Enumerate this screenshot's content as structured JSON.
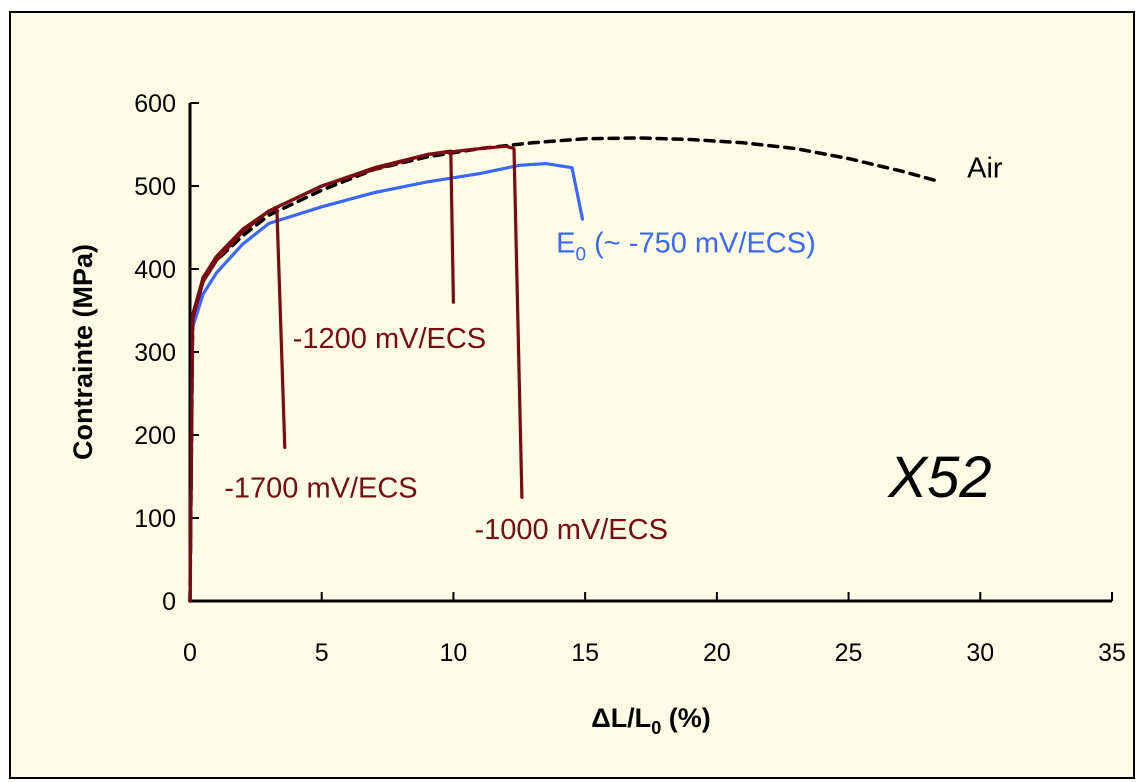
{
  "chart_data": {
    "type": "line",
    "title": "",
    "xlabel": "ΔL/L0 (%)",
    "xlabel_parts": {
      "main": "ΔL/L",
      "sub": "0",
      "rest": " (%)"
    },
    "ylabel": "Contrainte (MPa)",
    "xlim": [
      0,
      35
    ],
    "ylim": [
      0,
      600
    ],
    "x_ticks": [
      0,
      5,
      10,
      15,
      20,
      25,
      30,
      35
    ],
    "y_ticks": [
      0,
      100,
      200,
      300,
      400,
      500,
      600
    ],
    "x_tick_labels": [
      "0",
      "5",
      "10",
      "15",
      "20",
      "25",
      "30",
      "35"
    ],
    "y_tick_labels": [
      "0",
      "100",
      "200",
      "300",
      "400",
      "500",
      "600"
    ],
    "grid": false,
    "legend": "none",
    "annotation": "X52",
    "series": [
      {
        "name": "Air",
        "label_parts": {
          "main": "Air"
        },
        "color": "#000000",
        "dashed": true,
        "label_at": [
          29.5,
          510
        ],
        "points": [
          [
            0,
            0
          ],
          [
            0.1,
            330
          ],
          [
            0.5,
            390
          ],
          [
            1,
            410
          ],
          [
            2,
            440
          ],
          [
            3,
            465
          ],
          [
            5,
            495
          ],
          [
            7,
            520
          ],
          [
            9,
            535
          ],
          [
            11,
            545
          ],
          [
            13,
            552
          ],
          [
            15,
            557
          ],
          [
            17,
            558
          ],
          [
            19,
            556
          ],
          [
            21,
            552
          ],
          [
            23,
            545
          ],
          [
            25,
            533
          ],
          [
            27,
            518
          ],
          [
            28.5,
            505
          ]
        ]
      },
      {
        "name": "E0 (~ -750 mV/ECS)",
        "label_parts": {
          "main": "E",
          "sub": "0",
          "rest": " (~ -750 mV/ECS)"
        },
        "color": "#3b66ff",
        "dashed": false,
        "label_at": [
          13.9,
          420
        ],
        "points": [
          [
            0,
            0
          ],
          [
            0.1,
            330
          ],
          [
            0.5,
            370
          ],
          [
            1,
            395
          ],
          [
            2,
            430
          ],
          [
            3,
            455
          ],
          [
            5,
            475
          ],
          [
            7,
            492
          ],
          [
            9,
            505
          ],
          [
            11,
            515
          ],
          [
            12.5,
            525
          ],
          [
            13.5,
            527
          ],
          [
            14.5,
            522
          ],
          [
            14.9,
            460
          ]
        ]
      },
      {
        "name": "-1200 mV/ECS",
        "label_parts": {
          "main": "-1200 mV/ECS"
        },
        "color": "#7b0a12",
        "dashed": false,
        "label_at": [
          3.9,
          305
        ],
        "points": [
          [
            0,
            0
          ],
          [
            0.1,
            340
          ],
          [
            0.5,
            385
          ],
          [
            1,
            410
          ],
          [
            2,
            445
          ],
          [
            3,
            470
          ],
          [
            5,
            500
          ],
          [
            7,
            520
          ],
          [
            9,
            538
          ],
          [
            9.9,
            542
          ],
          [
            10,
            360
          ]
        ]
      },
      {
        "name": "-1700 mV/ECS",
        "label_parts": {
          "main": "-1700 mV/ECS"
        },
        "color": "#7b0a12",
        "dashed": false,
        "label_at": [
          1.3,
          125
        ],
        "points": [
          [
            0,
            0
          ],
          [
            0.1,
            345
          ],
          [
            0.5,
            390
          ],
          [
            1,
            415
          ],
          [
            2,
            448
          ],
          [
            3,
            470
          ],
          [
            3.3,
            472
          ],
          [
            3.6,
            185
          ]
        ]
      },
      {
        "name": "-1000 mV/ECS",
        "label_parts": {
          "main": "-1000 mV/ECS"
        },
        "color": "#7b0a12",
        "dashed": false,
        "label_at": [
          10.8,
          75
        ],
        "points": [
          [
            0,
            0
          ],
          [
            0.1,
            340
          ],
          [
            0.5,
            385
          ],
          [
            1,
            410
          ],
          [
            2,
            445
          ],
          [
            3,
            470
          ],
          [
            5,
            500
          ],
          [
            7,
            522
          ],
          [
            9,
            538
          ],
          [
            11,
            545
          ],
          [
            12,
            548
          ],
          [
            12.3,
            545
          ],
          [
            12.6,
            125
          ]
        ]
      }
    ]
  }
}
